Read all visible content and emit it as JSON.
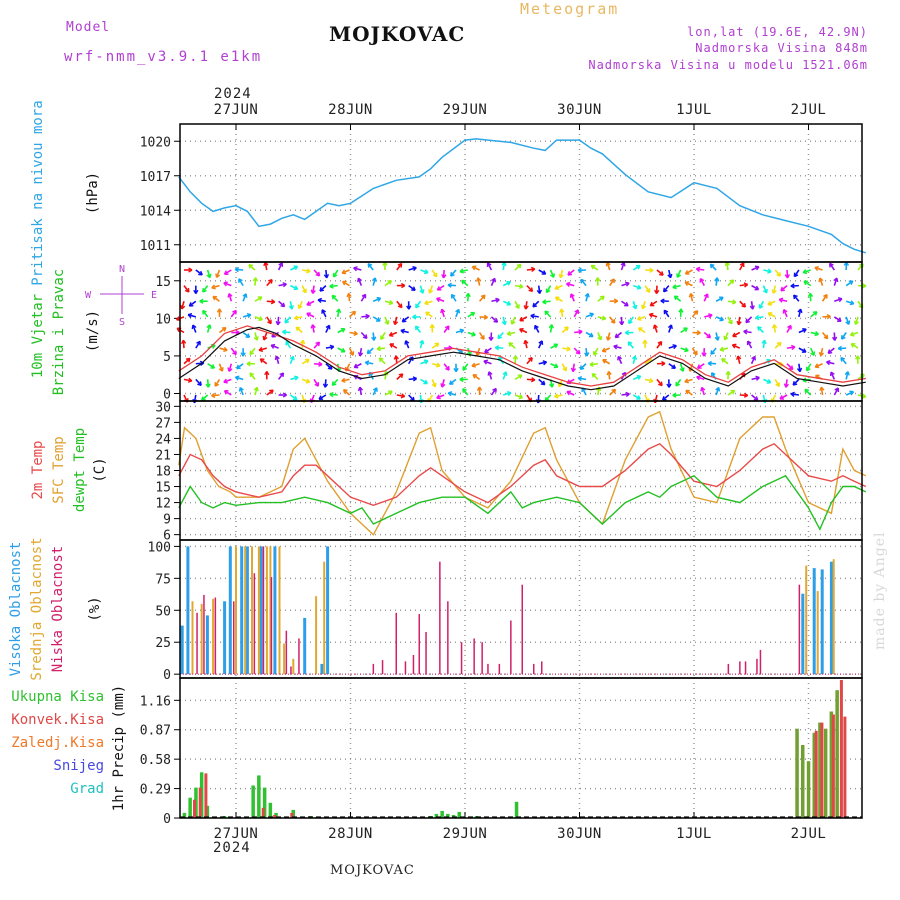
{
  "header": {
    "model_label": "Model",
    "model_name": "wrf-nmm_v3.9.1 e1km",
    "title": "MOJKOVAC",
    "product": "Meteogram",
    "lonlat": "lon,lat (19.6E, 42.9N)",
    "elevation": "Nadmorska Visina 848m",
    "model_elevation": "Nadmorska Visina u modelu 1521.06m",
    "year_top": "2024",
    "year_bottom": "2024",
    "footer_station": "MOJKOVAC",
    "watermark": "made by Angel"
  },
  "colors": {
    "pressure": "#2fa6e6",
    "temp2m": "#e84a4a",
    "sfc": "#e0a030",
    "dewpt": "#22c022",
    "high_cloud": "#2e9ee8",
    "mid_cloud": "#e0a830",
    "low_cloud": "#d0206a",
    "total_precip": "#30c030",
    "conv_precip": "#e04848",
    "frozen": "#f07828",
    "snow": "#4848e0",
    "graupel": "#20c0c0",
    "violet": "#b040d0"
  },
  "chart_data": [
    {
      "type": "line",
      "name": "pressure",
      "ylabel_main": "Pritisak na nivou mora",
      "ylabel_unit": "(hPa)",
      "ylim": [
        1009.5,
        1021.5
      ],
      "yticks": [
        1011,
        1014,
        1017,
        1020
      ],
      "x_days": [
        "27JUN",
        "28JUN",
        "29JUN",
        "30JUN",
        "1JUL",
        "2JUL"
      ],
      "grid": true,
      "series": [
        {
          "x": [
            -0.5,
            -0.4,
            -0.3,
            -0.2,
            -0.1,
            0.0,
            0.1,
            0.2,
            0.3,
            0.4,
            0.5,
            0.6,
            0.7,
            0.8,
            0.9,
            1.0,
            1.2,
            1.4,
            1.6,
            1.7,
            1.8,
            2.0,
            2.1,
            2.2,
            2.4,
            2.6,
            2.7,
            2.8,
            3.0,
            3.1,
            3.2,
            3.4,
            3.6,
            3.8,
            4.0,
            4.2,
            4.4,
            4.6,
            4.8,
            5.0,
            5.2,
            5.3,
            5.4,
            5.5
          ],
          "values": [
            1016.9,
            1015.6,
            1014.6,
            1013.9,
            1014.2,
            1014.4,
            1013.9,
            1012.6,
            1012.8,
            1013.3,
            1013.6,
            1013.2,
            1013.9,
            1014.6,
            1014.4,
            1014.6,
            1015.9,
            1016.6,
            1016.9,
            1017.6,
            1018.6,
            1020.1,
            1020.2,
            1020.1,
            1019.9,
            1019.4,
            1019.2,
            1020.1,
            1020.1,
            1019.4,
            1018.9,
            1017.1,
            1015.6,
            1015.1,
            1016.4,
            1015.9,
            1014.4,
            1013.6,
            1013.1,
            1012.6,
            1011.9,
            1011.1,
            1010.6,
            1010.3
          ]
        }
      ]
    },
    {
      "type": "line",
      "name": "wind",
      "ylabel_main": "10m Vjetar",
      "ylabel_sub": "Brzina i Pravac",
      "ylabel_unit": "(m/s)",
      "compass": {
        "n": "N",
        "e": "E",
        "w": "W",
        "s": "S"
      },
      "ylim": [
        -1,
        17.5
      ],
      "yticks": [
        0,
        5,
        10,
        15
      ],
      "series": [
        {
          "name": "speed",
          "x": [
            -0.5,
            -0.3,
            -0.1,
            0.1,
            0.2,
            0.35,
            0.5,
            0.7,
            0.9,
            1.1,
            1.3,
            1.5,
            1.7,
            1.9,
            2.1,
            2.3,
            2.5,
            2.7,
            2.9,
            3.1,
            3.3,
            3.5,
            3.7,
            3.9,
            4.1,
            4.3,
            4.5,
            4.7,
            4.9,
            5.1,
            5.3,
            5.5
          ],
          "values": [
            2,
            4,
            7,
            8.5,
            8.8,
            8,
            6.5,
            5,
            3,
            2,
            2.5,
            4.5,
            5,
            5.5,
            5,
            4.5,
            3,
            2,
            1,
            0.5,
            1,
            3,
            5,
            4,
            2,
            1,
            3,
            4,
            2,
            1.5,
            1,
            1.5
          ]
        },
        {
          "name": "gust",
          "x": [
            -0.5,
            -0.3,
            -0.1,
            0.1,
            0.3,
            0.5,
            0.7,
            0.9,
            1.1,
            1.3,
            1.5,
            1.7,
            1.9,
            2.1,
            2.3,
            2.5,
            2.7,
            2.9,
            3.1,
            3.3,
            3.5,
            3.7,
            3.9,
            4.1,
            4.3,
            4.5,
            4.7,
            4.9,
            5.1,
            5.3,
            5.5
          ],
          "values": [
            3,
            5,
            8,
            9,
            8,
            7,
            5.5,
            3.5,
            2.5,
            3,
            5,
            5.5,
            6,
            5.5,
            5,
            3.5,
            2.5,
            1.5,
            1,
            1.5,
            3.5,
            5.5,
            4.5,
            2.5,
            1.5,
            3.5,
            4.5,
            2.5,
            2,
            1.5,
            2
          ]
        }
      ]
    },
    {
      "type": "line",
      "name": "temperature",
      "ylabel_series": [
        "2m Temp",
        "SFC Temp",
        "dewpt Temp"
      ],
      "ylabel_unit": "(C)",
      "ylim": [
        5,
        31
      ],
      "yticks": [
        6,
        9,
        12,
        15,
        18,
        21,
        24,
        27,
        30
      ],
      "series": [
        {
          "name": "2m Temp",
          "x": [
            -0.5,
            -0.4,
            -0.3,
            -0.2,
            -0.1,
            0.0,
            0.2,
            0.4,
            0.5,
            0.6,
            0.7,
            0.8,
            1.0,
            1.2,
            1.4,
            1.6,
            1.7,
            1.8,
            2.0,
            2.2,
            2.4,
            2.6,
            2.7,
            2.8,
            3.0,
            3.2,
            3.4,
            3.6,
            3.7,
            3.8,
            4.0,
            4.2,
            4.4,
            4.6,
            4.7,
            4.8,
            5.0,
            5.2,
            5.3,
            5.4,
            5.5
          ],
          "values": [
            17,
            21,
            20,
            17,
            15,
            14,
            13,
            14,
            17,
            19,
            19,
            17,
            13,
            11.5,
            13,
            17,
            18.5,
            17,
            14,
            12,
            15,
            19,
            20,
            17,
            15,
            15,
            18,
            22,
            23,
            21,
            16,
            15,
            18,
            22,
            23,
            21,
            17,
            16,
            17,
            16,
            15
          ]
        },
        {
          "name": "SFC Temp",
          "x": [
            -0.5,
            -0.45,
            -0.35,
            -0.25,
            -0.15,
            -0.05,
            0.0,
            0.2,
            0.4,
            0.5,
            0.6,
            0.7,
            0.8,
            1.0,
            1.2,
            1.4,
            1.6,
            1.7,
            1.8,
            2.0,
            2.2,
            2.4,
            2.6,
            2.7,
            2.8,
            3.0,
            3.2,
            3.4,
            3.6,
            3.7,
            3.8,
            4.0,
            4.2,
            4.4,
            4.6,
            4.7,
            4.8,
            5.0,
            5.2,
            5.3,
            5.4,
            5.5
          ],
          "values": [
            19,
            26,
            24,
            18,
            15,
            14,
            13,
            13,
            15,
            22,
            24,
            20,
            16,
            10,
            6,
            14,
            25,
            26,
            18,
            13,
            11,
            16,
            25,
            26,
            20,
            12,
            8,
            20,
            28,
            29,
            22,
            13,
            12,
            24,
            28,
            28,
            22,
            12,
            10,
            22,
            18,
            17
          ]
        },
        {
          "name": "dewpt Temp",
          "x": [
            -0.5,
            -0.4,
            -0.3,
            -0.2,
            -0.1,
            0.0,
            0.2,
            0.4,
            0.6,
            0.8,
            1.0,
            1.1,
            1.2,
            1.4,
            1.6,
            1.8,
            2.0,
            2.2,
            2.4,
            2.5,
            2.6,
            2.8,
            3.0,
            3.2,
            3.4,
            3.6,
            3.7,
            3.8,
            4.0,
            4.2,
            4.4,
            4.6,
            4.8,
            5.0,
            5.1,
            5.2,
            5.3,
            5.4,
            5.5
          ],
          "values": [
            11,
            15,
            12,
            11,
            12,
            11.5,
            12,
            12,
            13,
            12,
            10,
            11,
            8,
            10,
            12,
            13,
            13,
            10,
            14,
            11,
            12,
            13,
            12,
            8,
            12,
            14,
            13,
            15,
            17,
            13,
            12,
            15,
            17,
            11,
            7,
            12,
            15,
            15,
            14
          ]
        }
      ]
    },
    {
      "type": "bar",
      "name": "clouds",
      "ylabel_series": [
        "Visoka Oblacnost",
        "Srednja Oblacnost",
        "Niska Oblacnost"
      ],
      "ylabel_unit": "(%)",
      "ylim": [
        -3,
        105
      ],
      "yticks": [
        0,
        25,
        50,
        75,
        100
      ],
      "series": [
        {
          "name": "Visoka Oblacnost",
          "x": [
            -0.47,
            -0.42,
            -0.25,
            -0.1,
            -0.05,
            0.05,
            0.1,
            0.22,
            0.34,
            0.6,
            0.75,
            0.8,
            4.95,
            5.05,
            5.12,
            5.2
          ],
          "values": [
            38,
            100,
            46,
            57,
            100,
            100,
            100,
            100,
            100,
            44,
            8,
            100,
            63,
            83,
            82,
            88
          ]
        },
        {
          "name": "Srednja Oblacnost",
          "x": [
            -0.38,
            -0.3,
            -0.2,
            0.0,
            0.08,
            0.14,
            0.2,
            0.27,
            0.3,
            0.38,
            0.42,
            0.5,
            0.7,
            0.77,
            4.98,
            5.08,
            5.22
          ],
          "values": [
            57,
            55,
            59,
            100,
            100,
            100,
            100,
            100,
            100,
            100,
            24,
            12,
            61,
            88,
            85,
            65,
            90
          ]
        },
        {
          "name": "Niska Oblacnost",
          "x": [
            -0.34,
            -0.28,
            -0.18,
            -0.02,
            0.16,
            0.24,
            0.31,
            0.44,
            0.48,
            0.55,
            1.2,
            1.28,
            1.4,
            1.48,
            1.55,
            1.6,
            1.66,
            1.78,
            1.85,
            1.97,
            2.08,
            2.15,
            2.2,
            2.3,
            2.4,
            2.5,
            2.6,
            2.67,
            4.3,
            4.4,
            4.45,
            4.55,
            4.58,
            4.92
          ],
          "values": [
            48,
            62,
            60,
            57,
            79,
            100,
            76,
            34,
            6,
            28,
            8,
            11,
            48,
            10,
            15,
            47,
            33,
            88,
            57,
            25,
            28,
            25,
            8,
            8,
            42,
            70,
            8,
            10,
            8,
            10,
            10,
            12,
            19,
            70
          ]
        }
      ]
    },
    {
      "type": "bar",
      "name": "precipitation",
      "legend": [
        "Ukupna Kisa",
        "Konvek.Kisa",
        "Zaledj.Kisa",
        "Snijeg",
        "Grad"
      ],
      "ylabel_unit": "1hr Precip (mm)",
      "ylim": [
        0,
        1.38
      ],
      "yticks": [
        0,
        0.29,
        0.58,
        0.87,
        1.16
      ],
      "series": [
        {
          "name": "Ukupna Kisa",
          "x": [
            -0.45,
            -0.4,
            -0.35,
            -0.3,
            -0.25,
            -0.1,
            0.15,
            0.2,
            0.25,
            0.3,
            0.35,
            0.5,
            0.65,
            1.7,
            1.75,
            1.8,
            1.85,
            1.9,
            1.95,
            2.1,
            2.45,
            4.9,
            4.95,
            5.0,
            5.05,
            5.1,
            5.15,
            5.2,
            5.25
          ],
          "values": [
            0.05,
            0.2,
            0.3,
            0.45,
            0.12,
            0.02,
            0.32,
            0.42,
            0.3,
            0.15,
            0.05,
            0.08,
            0.02,
            0.02,
            0.04,
            0.07,
            0.04,
            0.03,
            0.06,
            0.02,
            0.16,
            0.88,
            0.72,
            0.56,
            0.84,
            0.94,
            0.88,
            1.05,
            1.26
          ]
        },
        {
          "name": "Konvek.Kisa",
          "x": [
            -0.38,
            -0.33,
            -0.28,
            0.22,
            0.32,
            0.47,
            5.05,
            5.1,
            5.2,
            5.27,
            5.3
          ],
          "values": [
            0.18,
            0.3,
            0.44,
            0.1,
            0.03,
            0.05,
            0.86,
            0.94,
            1.02,
            1.36,
            1.0
          ]
        }
      ]
    }
  ]
}
